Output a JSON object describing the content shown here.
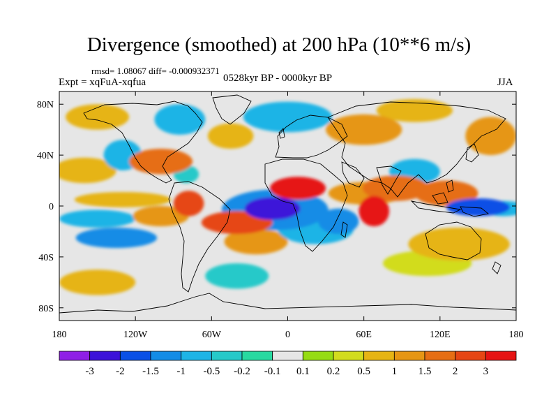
{
  "title": "Divergence (smoothed) at 200 hPa (10**6 m/s)",
  "stats": "rmsd= 1.08067 diff= -0.000932371",
  "expt": "Expt = xqFuA-xqfua",
  "period": "0528kyr BP - 0000kyr BP",
  "season": "JJA",
  "map": {
    "projection": "cylindrical-equidistant",
    "lon_range": [
      -180,
      180
    ],
    "lat_range": [
      -90,
      90
    ],
    "x_ticks": [
      {
        "value": -180,
        "label": "180"
      },
      {
        "value": -120,
        "label": "120W"
      },
      {
        "value": -60,
        "label": "60W"
      },
      {
        "value": 0,
        "label": "0"
      },
      {
        "value": 60,
        "label": "60E"
      },
      {
        "value": 120,
        "label": "120E"
      },
      {
        "value": 180,
        "label": "180"
      }
    ],
    "y_ticks": [
      {
        "value": 80,
        "label": "80N"
      },
      {
        "value": 40,
        "label": "40N"
      },
      {
        "value": 0,
        "label": "0"
      },
      {
        "value": -40,
        "label": "40S"
      },
      {
        "value": -80,
        "label": "80S"
      }
    ],
    "background_color": "#e6e6e6",
    "features": [
      {
        "lon": -12,
        "lat": -2,
        "rx": 22,
        "ry": 9,
        "value": -3
      },
      {
        "lon": -10,
        "lat": -3,
        "rx": 42,
        "ry": 16,
        "value": -1.5
      },
      {
        "lon": 8,
        "lat": 14,
        "rx": 22,
        "ry": 9,
        "value": 3
      },
      {
        "lon": -40,
        "lat": -13,
        "rx": 28,
        "ry": 9,
        "value": 2
      },
      {
        "lon": -25,
        "lat": -28,
        "rx": 25,
        "ry": 10,
        "value": 1
      },
      {
        "lon": 22,
        "lat": -18,
        "rx": 30,
        "ry": 12,
        "value": -1
      },
      {
        "lon": 40,
        "lat": -12,
        "rx": 16,
        "ry": 10,
        "value": -1.5
      },
      {
        "lon": 68,
        "lat": -4,
        "rx": 12,
        "ry": 12,
        "value": 3
      },
      {
        "lon": 62,
        "lat": 10,
        "rx": 30,
        "ry": 9,
        "value": 1
      },
      {
        "lon": 85,
        "lat": 14,
        "rx": 26,
        "ry": 10,
        "value": 1.5
      },
      {
        "lon": 100,
        "lat": 27,
        "rx": 20,
        "ry": 10,
        "value": -1
      },
      {
        "lon": 125,
        "lat": 10,
        "rx": 25,
        "ry": 10,
        "value": 1.5
      },
      {
        "lon": 150,
        "lat": -1,
        "rx": 25,
        "ry": 7,
        "value": -2
      },
      {
        "lon": 170,
        "lat": -2,
        "rx": 18,
        "ry": 6,
        "value": -1
      },
      {
        "lon": 135,
        "lat": -30,
        "rx": 40,
        "ry": 13,
        "value": 0.5
      },
      {
        "lon": 110,
        "lat": -45,
        "rx": 35,
        "ry": 10,
        "value": 0.2
      },
      {
        "lon": -135,
        "lat": -25,
        "rx": 32,
        "ry": 8,
        "value": -1.5
      },
      {
        "lon": -150,
        "lat": -10,
        "rx": 30,
        "ry": 7,
        "value": -1
      },
      {
        "lon": -100,
        "lat": -8,
        "rx": 22,
        "ry": 8,
        "value": 1
      },
      {
        "lon": -78,
        "lat": 2,
        "rx": 12,
        "ry": 10,
        "value": 2
      },
      {
        "lon": -130,
        "lat": 5,
        "rx": 38,
        "ry": 6,
        "value": 0.5
      },
      {
        "lon": -160,
        "lat": 28,
        "rx": 25,
        "ry": 10,
        "value": 0.5
      },
      {
        "lon": -130,
        "lat": 40,
        "rx": 15,
        "ry": 12,
        "value": -1
      },
      {
        "lon": -100,
        "lat": 35,
        "rx": 25,
        "ry": 10,
        "value": 1.5
      },
      {
        "lon": -80,
        "lat": 25,
        "rx": 10,
        "ry": 7,
        "value": -0.5
      },
      {
        "lon": -150,
        "lat": 70,
        "rx": 25,
        "ry": 10,
        "value": 0.5
      },
      {
        "lon": -85,
        "lat": 68,
        "rx": 20,
        "ry": 12,
        "value": -1
      },
      {
        "lon": -45,
        "lat": 55,
        "rx": 18,
        "ry": 10,
        "value": 0.5
      },
      {
        "lon": 0,
        "lat": 70,
        "rx": 35,
        "ry": 12,
        "value": -1
      },
      {
        "lon": 60,
        "lat": 60,
        "rx": 30,
        "ry": 12,
        "value": 1
      },
      {
        "lon": 100,
        "lat": 75,
        "rx": 30,
        "ry": 9,
        "value": 0.5
      },
      {
        "lon": 160,
        "lat": 55,
        "rx": 20,
        "ry": 15,
        "value": 1
      },
      {
        "lon": -150,
        "lat": -60,
        "rx": 30,
        "ry": 10,
        "value": 0.5
      },
      {
        "lon": -40,
        "lat": -55,
        "rx": 25,
        "ry": 10,
        "value": -0.5
      }
    ]
  },
  "colorbar": {
    "colors": [
      "#8f1fe6",
      "#3c12d9",
      "#0a50e6",
      "#148ce6",
      "#1eb4e6",
      "#26c9c9",
      "#28d9a0",
      "#e6e6e6",
      "#96dc14",
      "#d2dc1e",
      "#e6b414",
      "#e69614",
      "#e66e14",
      "#e64614",
      "#e61414"
    ],
    "labels": [
      "-3",
      "-2",
      "-1.5",
      "-1",
      "-0.5",
      "-0.2",
      "-0.1",
      "0.1",
      "0.2",
      "0.5",
      "1",
      "1.5",
      "2",
      "3"
    ]
  }
}
